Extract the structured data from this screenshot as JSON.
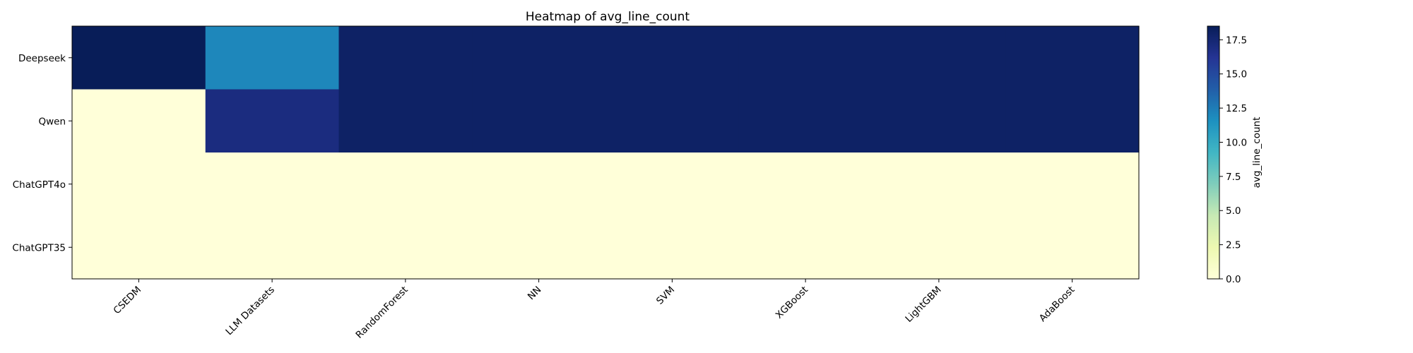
{
  "chart_data": {
    "type": "heatmap",
    "title": "Heatmap of avg_line_count",
    "x_categories": [
      "CSEDM",
      "LLM Datasets",
      "RandomForest",
      "NN",
      "SVM",
      "XGBoost",
      "LightGBM",
      "AdaBoost"
    ],
    "y_categories": [
      "Deepseek",
      "Qwen",
      "ChatGPT4o",
      "ChatGPT35"
    ],
    "values": [
      [
        18.5,
        12.0,
        18.0,
        18.0,
        18.0,
        18.0,
        18.0,
        18.0
      ],
      [
        0.0,
        17.0,
        18.0,
        18.0,
        18.0,
        18.0,
        18.0,
        18.0
      ],
      [
        0.0,
        0.0,
        0.0,
        0.0,
        0.0,
        0.0,
        0.0,
        0.0
      ],
      [
        0.0,
        0.0,
        0.0,
        0.0,
        0.0,
        0.0,
        0.0,
        0.0
      ]
    ],
    "colormap": "YlGnBu",
    "vmin": 0,
    "vmax": 18.5,
    "colorbar": {
      "label": "avg_line_count",
      "ticks": [
        0.0,
        2.5,
        5.0,
        7.5,
        10.0,
        12.5,
        15.0,
        17.5
      ],
      "tick_labels": [
        "0.0",
        "2.5",
        "5.0",
        "7.5",
        "10.0",
        "12.5",
        "15.0",
        "17.5"
      ]
    },
    "grid": false
  }
}
